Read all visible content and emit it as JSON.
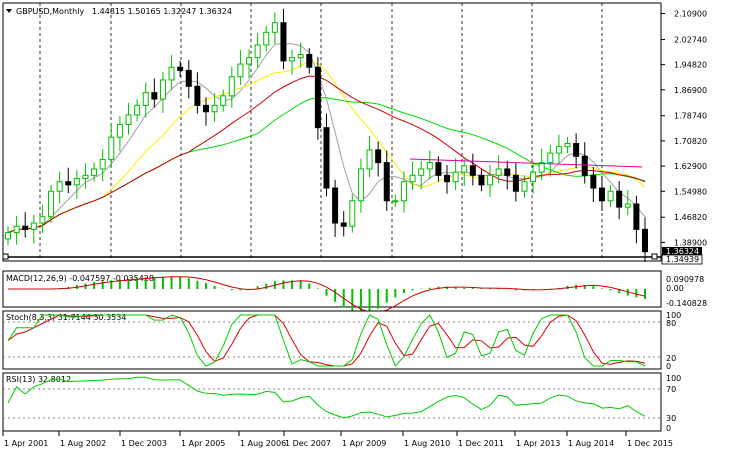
{
  "main": {
    "title": "GBPUSD,Monthly",
    "ohlc": "1.44815 1.50165 1.32247 1.36324",
    "y_ticks": [
      "2.10900",
      "2.02740",
      "1.94820",
      "1.86900",
      "1.78740",
      "1.70820",
      "1.62900",
      "1.54980",
      "1.46820",
      "1.38900"
    ],
    "price_labels": [
      "1.36324",
      "1.34939"
    ]
  },
  "macd": {
    "title": "MACD(12,26,9) -0.047597 -0.035428",
    "ticks": [
      "0.090978",
      "0.00",
      "-0.140828"
    ]
  },
  "stoch": {
    "title": "Stoch(8,3,3) 31.7144 30.3534",
    "ticks": [
      "100",
      "80",
      "20",
      "0"
    ]
  },
  "rsi": {
    "title": "RSI(13) 32.8012",
    "ticks": [
      "100",
      "70",
      "30",
      "0"
    ]
  },
  "x_axis": {
    "ticks": [
      "1 Apr 2001",
      "1 Aug 2002",
      "1 Dec 2003",
      "1 Apr 2005",
      "1 Aug 2006",
      "1 Dec 2007",
      "1 Apr 2009",
      "1 Aug 2010",
      "1 Dec 2011",
      "1 Apr 2013",
      "1 Aug 2014",
      "1 Dec 2015"
    ]
  },
  "colors": {
    "bull": "#00c000",
    "bear": "#000000",
    "ma_gray": "#a0a0a0",
    "ma_yellow": "#ffee00",
    "ma_green": "#00dd00",
    "ma_red": "#cc0000",
    "trend_pink": "#dd00aa",
    "stoch_main": "#00cc00",
    "stoch_signal": "#dd0000",
    "rsi_line": "#00cc00"
  },
  "chart_data": {
    "type": "candlestick",
    "series_close": [
      1.42,
      1.44,
      1.43,
      1.45,
      1.47,
      1.55,
      1.58,
      1.57,
      1.59,
      1.6,
      1.62,
      1.65,
      1.72,
      1.76,
      1.79,
      1.82,
      1.86,
      1.84,
      1.9,
      1.94,
      1.93,
      1.88,
      1.82,
      1.8,
      1.82,
      1.85,
      1.91,
      1.95,
      1.97,
      2.01,
      2.05,
      2.08,
      1.96,
      1.97,
      1.98,
      1.94,
      1.75,
      1.56,
      1.45,
      1.44,
      1.52,
      1.62,
      1.68,
      1.64,
      1.52,
      1.52,
      1.58,
      1.6,
      1.62,
      1.64,
      1.6,
      1.58,
      1.61,
      1.63,
      1.6,
      1.57,
      1.6,
      1.62,
      1.6,
      1.55,
      1.58,
      1.61,
      1.64,
      1.67,
      1.69,
      1.7,
      1.66,
      1.6,
      1.56,
      1.52,
      1.55,
      1.5,
      1.51,
      1.43,
      1.36
    ],
    "y_range": [
      1.34,
      2.12
    ]
  }
}
